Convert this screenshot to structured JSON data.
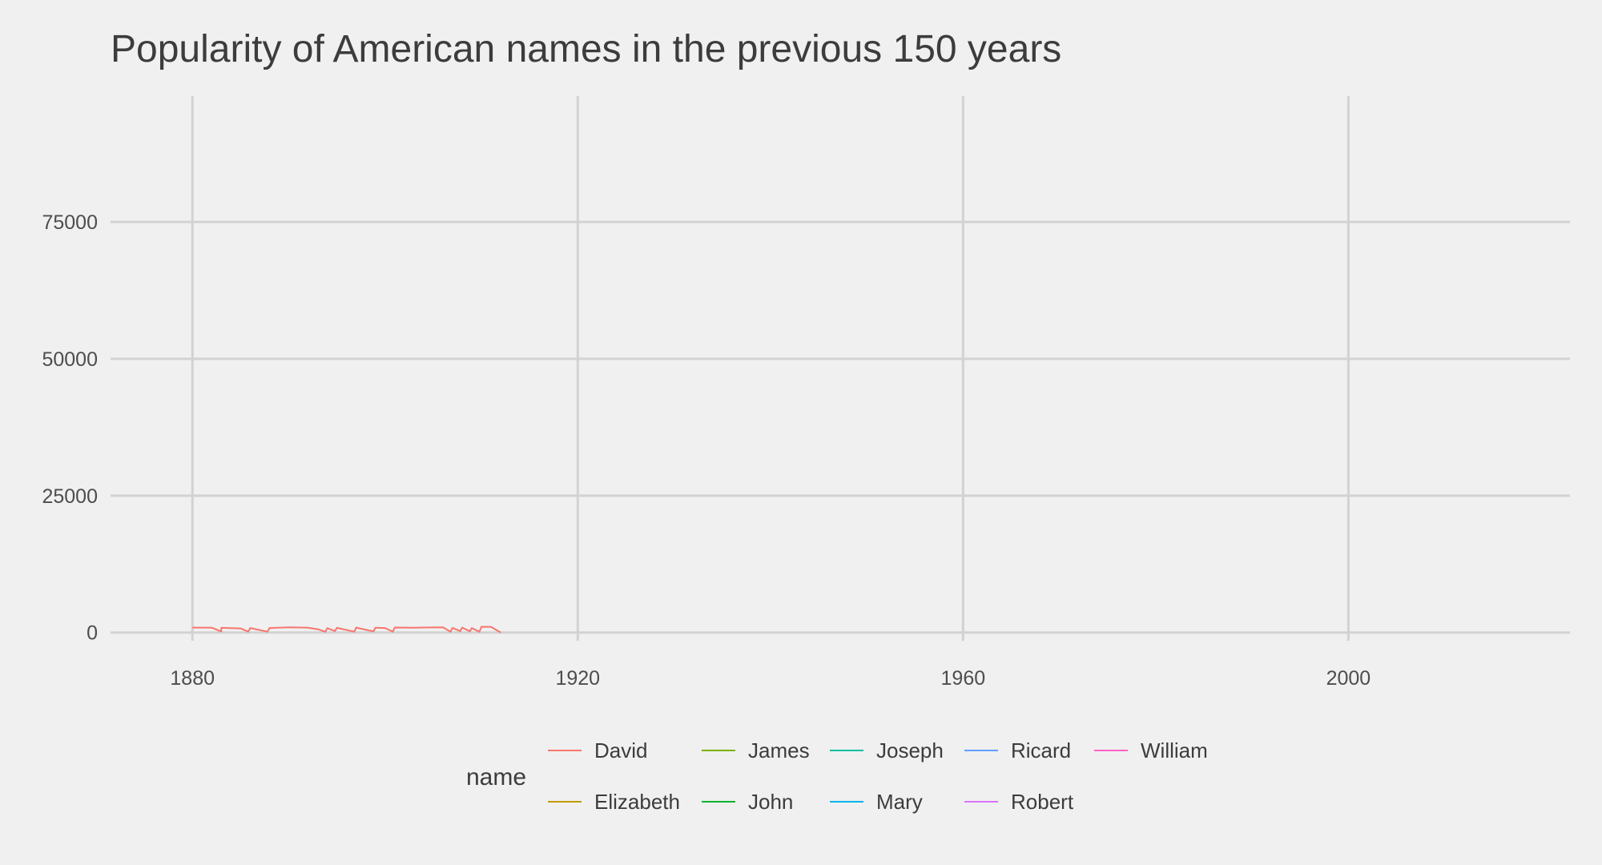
{
  "chart_data": {
    "type": "line",
    "title": "Popularity of American names in the previous 150 years",
    "xlabel": "",
    "ylabel": "",
    "xlim": [
      1871.5,
      2023
    ],
    "ylim": [
      -1500,
      98000
    ],
    "x_ticks": [
      1880,
      1920,
      1960,
      2000
    ],
    "y_ticks": [
      0,
      25000,
      50000,
      75000
    ],
    "grid": true,
    "legend": {
      "title": "name",
      "placement": "bottom"
    },
    "series": [
      {
        "name": "David",
        "color": "#F8766D",
        "points": [
          [
            1880,
            900
          ],
          [
            1882,
            880
          ],
          [
            1883,
            200
          ],
          [
            1883,
            860
          ],
          [
            1885,
            760
          ],
          [
            1885.8,
            150
          ],
          [
            1886,
            820
          ],
          [
            1887.8,
            150
          ],
          [
            1888,
            830
          ],
          [
            1890,
            940
          ],
          [
            1892,
            880
          ],
          [
            1893,
            600
          ],
          [
            1893.8,
            140
          ],
          [
            1894,
            800
          ],
          [
            1894.8,
            260
          ],
          [
            1895,
            860
          ],
          [
            1896.8,
            160
          ],
          [
            1897,
            900
          ],
          [
            1898.8,
            200
          ],
          [
            1899,
            880
          ],
          [
            1900,
            820
          ],
          [
            1900.8,
            160
          ],
          [
            1901,
            920
          ],
          [
            1903,
            880
          ],
          [
            1904,
            920
          ],
          [
            1906,
            950
          ],
          [
            1906.8,
            140
          ],
          [
            1907,
            860
          ],
          [
            1907.8,
            240
          ],
          [
            1908,
            900
          ],
          [
            1908.8,
            220
          ],
          [
            1909,
            820
          ],
          [
            1909.8,
            140
          ],
          [
            1910,
            1050
          ],
          [
            1911,
            1040
          ],
          [
            1912,
            0
          ]
        ]
      },
      {
        "name": "Elizabeth",
        "color": "#C49A00",
        "points": []
      },
      {
        "name": "James",
        "color": "#7CAE00",
        "points": []
      },
      {
        "name": "John",
        "color": "#00B32C",
        "points": []
      },
      {
        "name": "Joseph",
        "color": "#00BFA0",
        "points": []
      },
      {
        "name": "Mary",
        "color": "#00B4EF",
        "points": []
      },
      {
        "name": "Ricard",
        "color": "#619CFF",
        "points": []
      },
      {
        "name": "Robert",
        "color": "#DB72FB",
        "points": []
      },
      {
        "name": "William",
        "color": "#FF61C3",
        "points": []
      }
    ]
  }
}
